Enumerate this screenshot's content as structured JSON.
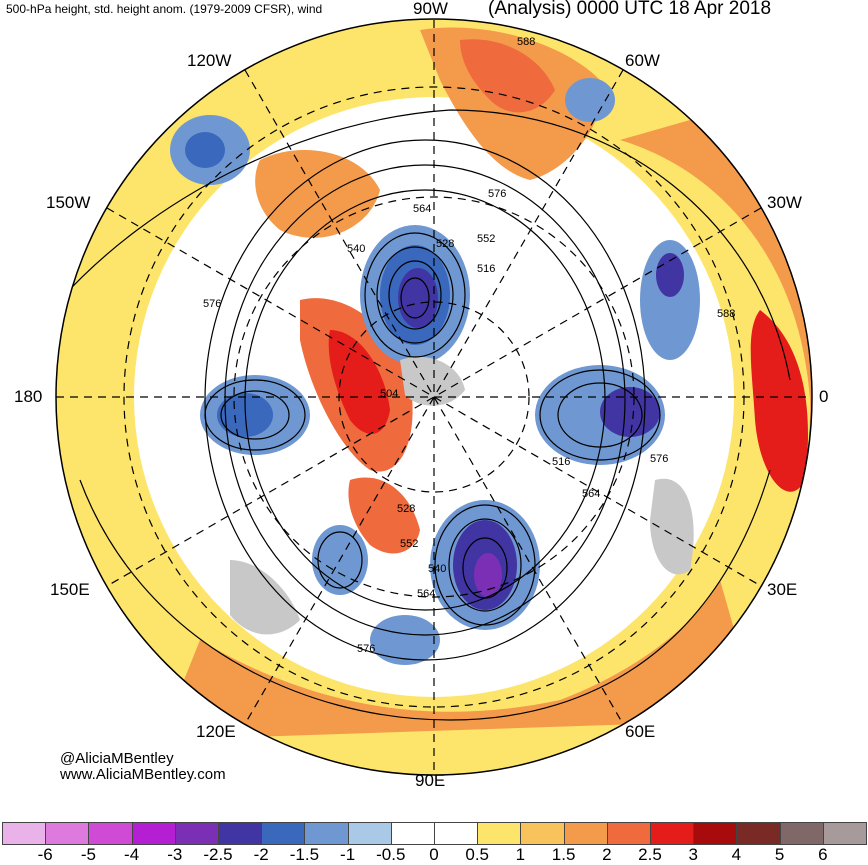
{
  "header": {
    "left_title": "500-hPa height, std. height anom. (1979-2009 CFSR), wind",
    "right_title": "(Analysis) 0000 UTC 18 Apr 2018"
  },
  "longitude_labels": {
    "w90": "90W",
    "w60": "60W",
    "w30": "30W",
    "e0": "0",
    "e30": "30E",
    "e60": "60E",
    "e90": "90E",
    "e120": "120E",
    "e150": "150E",
    "l180": "180",
    "w150": "150W",
    "w120": "120W"
  },
  "contour_labels": [
    "588",
    "576",
    "564",
    "552",
    "528",
    "540",
    "516",
    "576",
    "504",
    "516",
    "576",
    "564",
    "528",
    "552",
    "540",
    "564",
    "576",
    "588"
  ],
  "credits": {
    "handle": "@AliciaMBentley",
    "site": "www.AliciaMBentley.com"
  },
  "colorbar": {
    "colors": [
      "#e9b2e9",
      "#de7ade",
      "#cf4bd6",
      "#b51fd3",
      "#7a2fb5",
      "#4134a3",
      "#3968bd",
      "#6f98d2",
      "#a9c9e6",
      "#ffffff",
      "#ffffff",
      "#fde56b",
      "#f7c35a",
      "#f49a4b",
      "#ef6a3c",
      "#e41c1a",
      "#a70b0b",
      "#7a2a24",
      "#806869",
      "#a69a9a"
    ],
    "ticks": [
      "-6",
      "-5",
      "-4",
      "-3",
      "-2.5",
      "-2",
      "-1.5",
      "-1",
      "-0.5",
      "0",
      "0.5",
      "1",
      "1.5",
      "2",
      "2.5",
      "3",
      "4",
      "5",
      "6"
    ]
  },
  "map": {
    "anomaly_colors": {
      "strong_neg": "#4134a3",
      "mid_neg": "#3968bd",
      "weak_neg": "#a9c9e6",
      "weak_pos": "#fde56b",
      "mid_pos": "#f49a4b",
      "strong_pos": "#e41c1a",
      "land_gray": "#c8c8c8"
    }
  }
}
